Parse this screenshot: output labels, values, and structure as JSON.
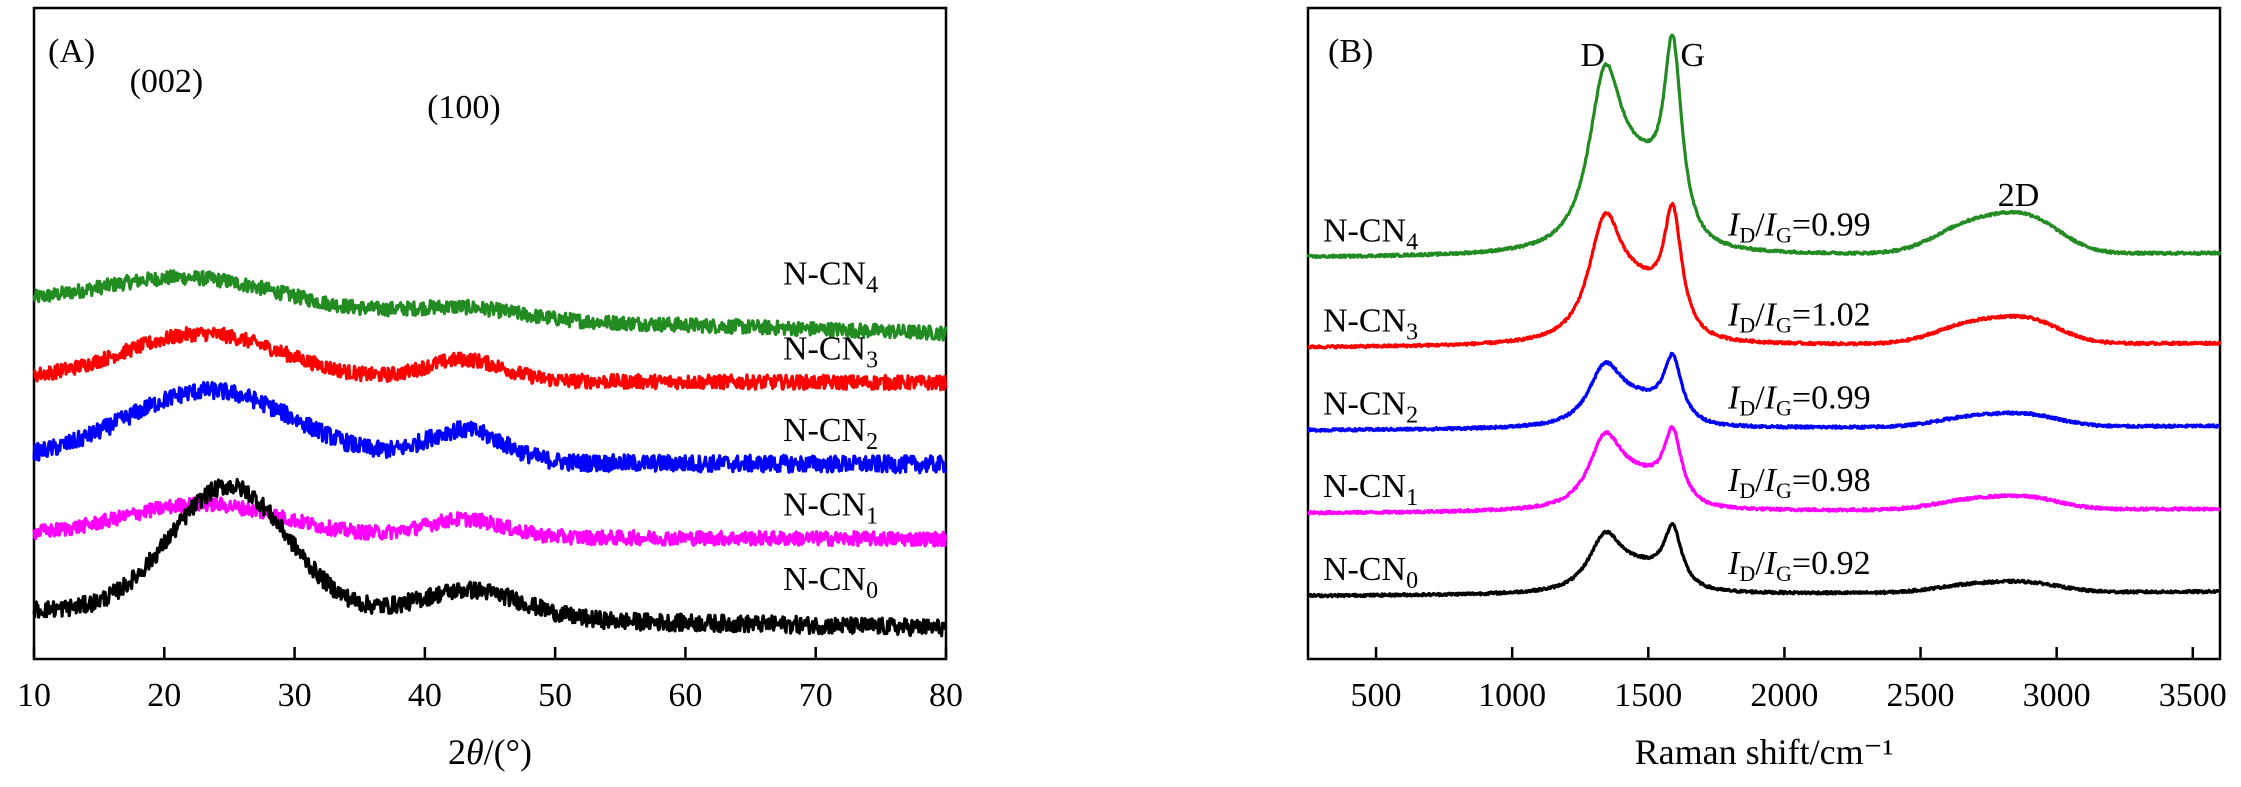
{
  "chart_data": [
    {
      "panel": "(A)",
      "type": "line",
      "xlabel_pre": "2",
      "xlabel_var": "θ",
      "xlabel_post": "/(°)",
      "ylabel": "",
      "xlim": [
        10,
        80
      ],
      "xticks": [
        "10",
        "20",
        "30",
        "40",
        "50",
        "60",
        "70",
        "80"
      ],
      "yticks_shown": false,
      "peak_annotations": [
        {
          "text": "(002)",
          "x": 24
        },
        {
          "text": "(100)",
          "x": 43
        }
      ],
      "series": [
        {
          "name_base": "N-CN",
          "name_sub": "4",
          "color": "#228B22",
          "offset": 4.3,
          "peaks": [
            [
              22,
              7,
              0.45
            ],
            [
              43,
              4,
              0.15
            ]
          ],
          "baseline_end": -0.4,
          "noise": 0.1
        },
        {
          "name_base": "N-CN",
          "name_sub": "3",
          "color": "#FF0000",
          "offset": 3.25,
          "peaks": [
            [
              23,
              6,
              0.65
            ],
            [
              43,
              3,
              0.3
            ]
          ],
          "baseline_end": -0.05,
          "noise": 0.1
        },
        {
          "name_base": "N-CN",
          "name_sub": "2",
          "color": "#0000FF",
          "offset": 2.1,
          "peaks": [
            [
              23.5,
              6.5,
              1.0
            ],
            [
              43,
              3,
              0.45
            ]
          ],
          "baseline_end": -0.05,
          "noise": 0.12
        },
        {
          "name_base": "N-CN",
          "name_sub": "1",
          "color": "#FF00FF",
          "offset": 1.05,
          "peaks": [
            [
              23,
              6,
              0.45
            ],
            [
              43,
              3,
              0.25
            ]
          ],
          "baseline_end": -0.05,
          "noise": 0.1
        },
        {
          "name_base": "N-CN",
          "name_sub": "0",
          "color": "#000000",
          "offset": 0.0,
          "peaks": [
            [
              25,
              4.5,
              1.8
            ],
            [
              43.5,
              4,
              0.4
            ]
          ],
          "baseline_end": -0.25,
          "noise": 0.12
        }
      ]
    },
    {
      "panel": "(B)",
      "type": "line",
      "xlabel": "Raman shift/cm⁻¹",
      "ylabel": "",
      "xlim": [
        250,
        3600
      ],
      "xticks": [
        "500",
        "1000",
        "1500",
        "2000",
        "2500",
        "3000",
        "3500"
      ],
      "yticks_shown": false,
      "peak_annotations": [
        {
          "text": "D",
          "x": 1340
        },
        {
          "text": "G",
          "x": 1590
        },
        {
          "text": "2D",
          "x": 2860
        }
      ],
      "series": [
        {
          "name_base": "N-CN",
          "name_sub": "4",
          "color": "#228B22",
          "offset": 4.7,
          "D": 2.3,
          "G": 2.55,
          "twoD": 0.45,
          "ratio_D": "D",
          "ratio_G": "G",
          "ratio_value": "=0.99"
        },
        {
          "name_base": "N-CN",
          "name_sub": "3",
          "color": "#FF0000",
          "offset": 3.45,
          "D": 1.6,
          "G": 1.6,
          "twoD": 0.3,
          "ratio_D": "D",
          "ratio_G": "G",
          "ratio_value": "=1.02"
        },
        {
          "name_base": "N-CN",
          "name_sub": "2",
          "color": "#0000FF",
          "offset": 2.3,
          "D": 0.8,
          "G": 0.85,
          "twoD": 0.15,
          "ratio_D": "D",
          "ratio_G": "G",
          "ratio_value": "=0.99"
        },
        {
          "name_base": "N-CN",
          "name_sub": "1",
          "color": "#FF00FF",
          "offset": 1.15,
          "D": 0.95,
          "G": 0.95,
          "twoD": 0.15,
          "ratio_D": "D",
          "ratio_G": "G",
          "ratio_value": "=0.98"
        },
        {
          "name_base": "N-CN",
          "name_sub": "0",
          "color": "#000000",
          "offset": 0.0,
          "D": 0.75,
          "G": 0.8,
          "twoD": 0.12,
          "ratio_D": "D",
          "ratio_G": "G",
          "ratio_value": "=0.92"
        }
      ]
    }
  ]
}
